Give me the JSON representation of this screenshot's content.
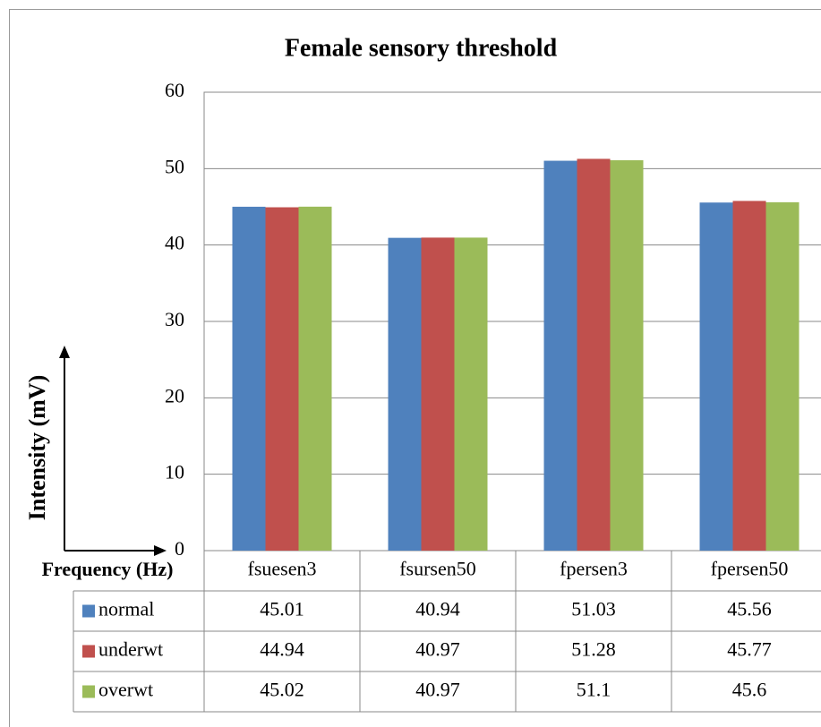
{
  "chart_data": {
    "type": "bar",
    "title": "Female sensory threshold",
    "x_label": "Frequency (Hz)",
    "y_label": "Intensity (mV)",
    "categories": [
      "fsuesen3",
      "fsursen50",
      "fpersen3",
      "fpersen50"
    ],
    "series": [
      {
        "name": "normal",
        "color": "#4f81bd",
        "values": [
          45.01,
          40.94,
          51.03,
          45.56
        ]
      },
      {
        "name": "underwt",
        "color": "#c0504d",
        "values": [
          44.94,
          40.97,
          51.28,
          45.77
        ]
      },
      {
        "name": "overwt",
        "color": "#9bbb59",
        "values": [
          45.02,
          40.97,
          51.1,
          45.6
        ]
      }
    ],
    "ylim": [
      0,
      60
    ],
    "yticks": [
      0,
      10,
      20,
      30,
      40,
      50,
      60
    ],
    "grid": true,
    "data_table": true
  }
}
